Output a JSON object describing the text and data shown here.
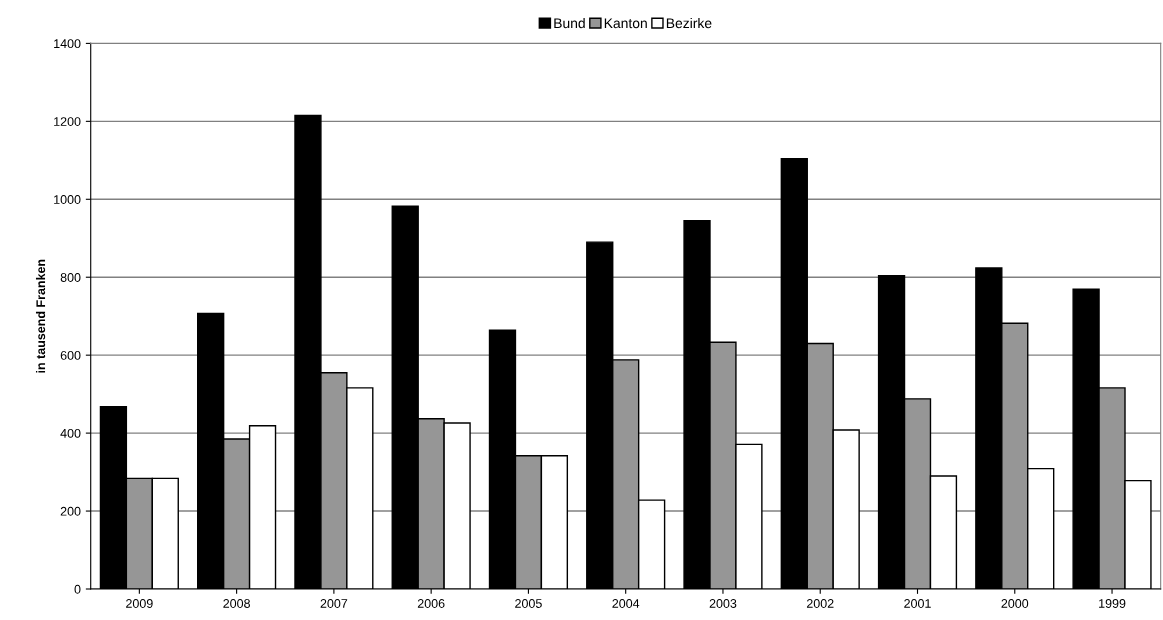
{
  "chart_data": {
    "type": "bar",
    "ylabel": "in tausend Franken",
    "categories": [
      "2009",
      "2008",
      "2007",
      "2006",
      "2005",
      "2004",
      "2003",
      "2002",
      "2001",
      "2000",
      "1999"
    ],
    "series": [
      {
        "name": "Bund",
        "color": "#000000",
        "values": [
          468,
          707,
          1215,
          982,
          664,
          890,
          945,
          1104,
          804,
          824,
          769
        ]
      },
      {
        "name": "Kanton",
        "color": "#969696",
        "values": [
          284,
          385,
          555,
          437,
          342,
          588,
          633,
          630,
          488,
          682,
          516
        ]
      },
      {
        "name": "Bezirke",
        "color": "#ffffff",
        "values": [
          284,
          419,
          516,
          426,
          342,
          228,
          371,
          408,
          290,
          309,
          278
        ]
      }
    ],
    "ylim": [
      0,
      1400
    ],
    "yticks": [
      0,
      200,
      400,
      600,
      800,
      1000,
      1200,
      1400
    ],
    "grid": "y",
    "legend": "top"
  }
}
